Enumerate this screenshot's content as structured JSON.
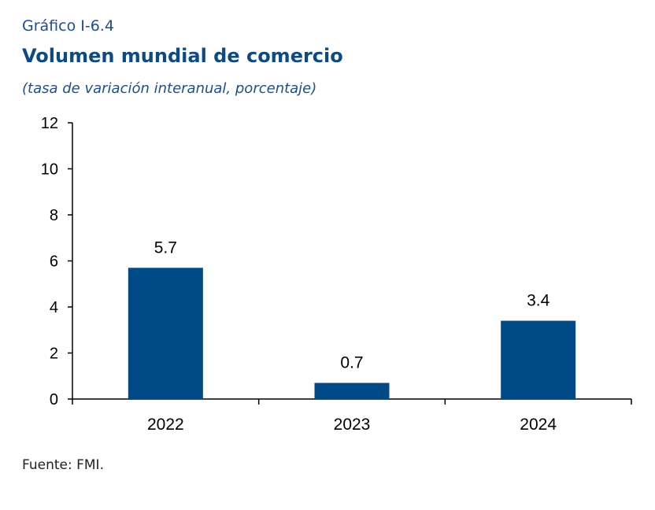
{
  "figure_label": "Gráfico I-6.4",
  "title": "Volumen mundial de comercio",
  "subtitle": "(tasa de variación interanual, porcentaje)",
  "source": "Fuente: FMI.",
  "colors": {
    "bar": "#004a87",
    "axis": "#000000"
  },
  "chart_data": {
    "type": "bar",
    "categories": [
      "2022",
      "2023",
      "2024"
    ],
    "values": [
      5.7,
      0.7,
      3.4
    ],
    "data_labels": [
      "5.7",
      "0.7",
      "3.4"
    ],
    "ylim": [
      0,
      12
    ],
    "yticks": [
      0,
      2,
      4,
      6,
      8,
      10,
      12
    ],
    "title": "Volumen mundial de comercio",
    "xlabel": "",
    "ylabel": "",
    "grid": false,
    "legend": "none"
  }
}
